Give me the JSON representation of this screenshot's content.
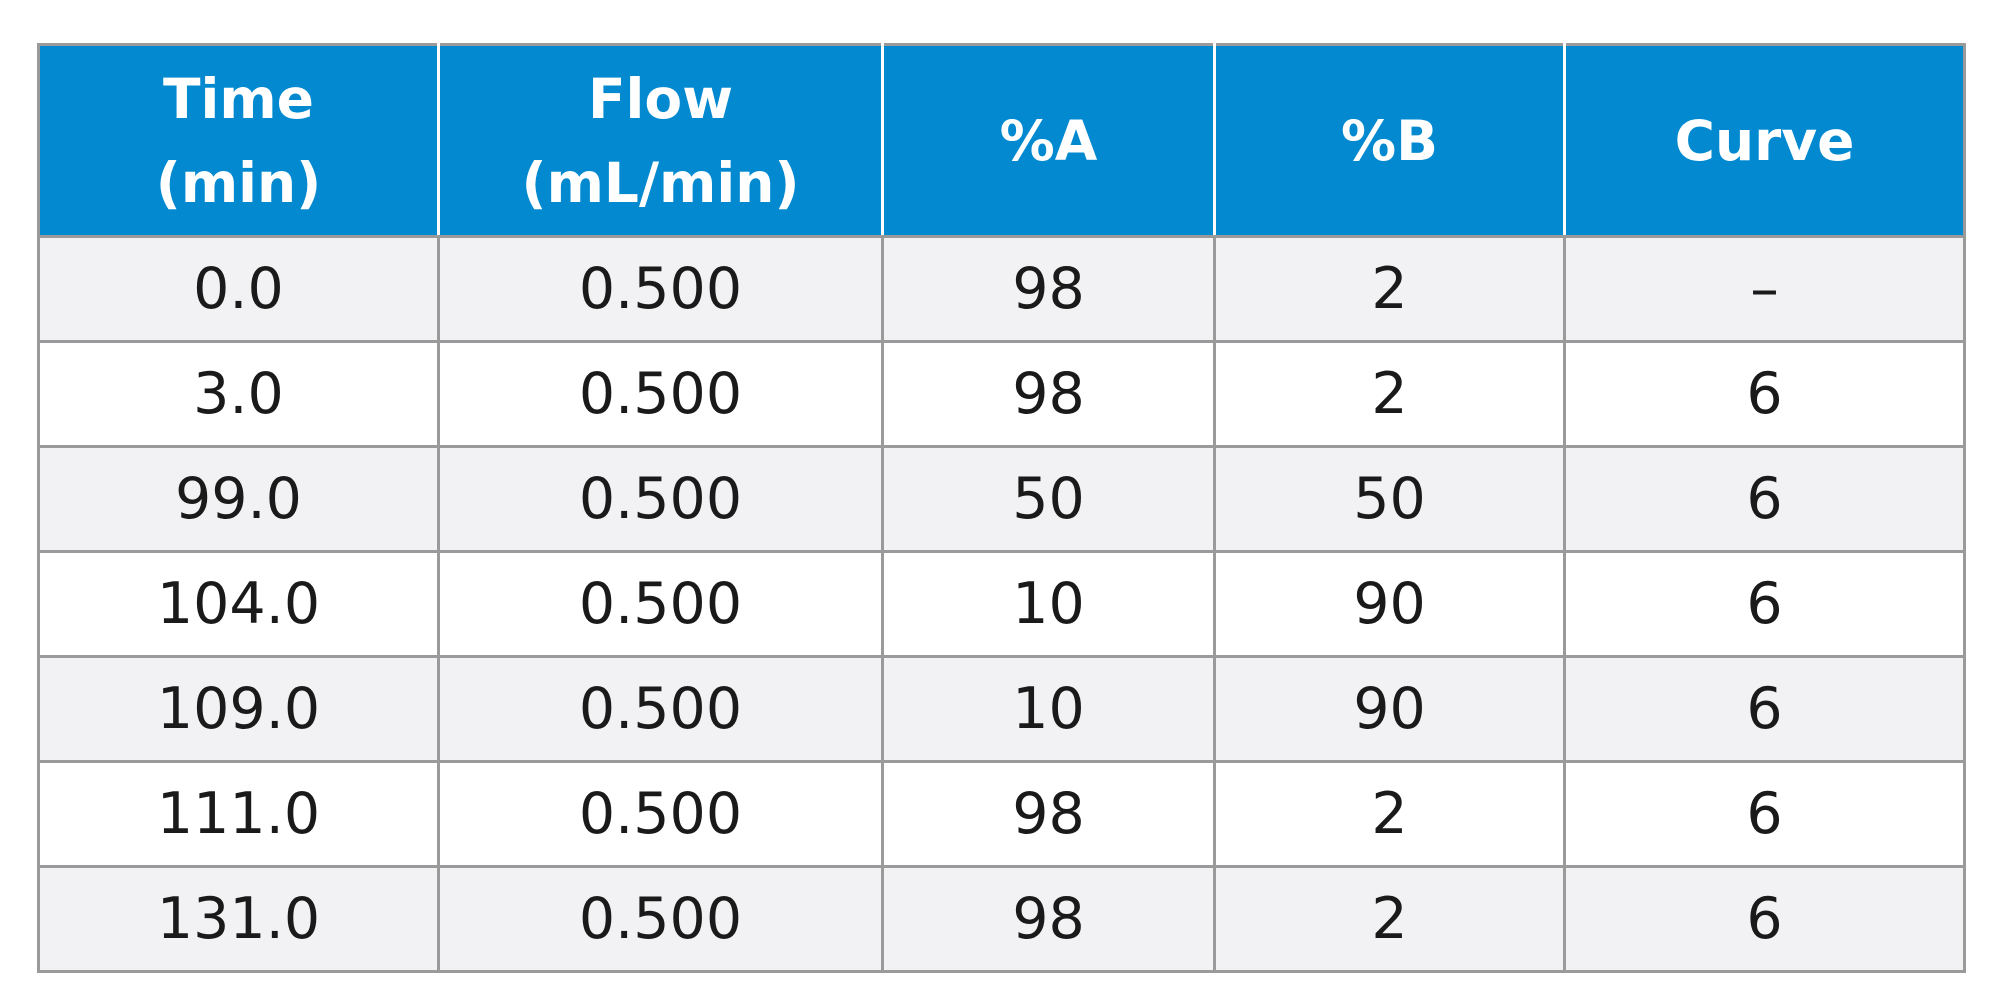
{
  "table": {
    "headers": [
      {
        "line1": "Time",
        "line2": "(min)"
      },
      {
        "line1": "Flow",
        "line2": "(mL/min)"
      },
      {
        "line1": "%A",
        "line2": ""
      },
      {
        "line1": "%B",
        "line2": ""
      },
      {
        "line1": "Curve",
        "line2": ""
      }
    ],
    "rows": [
      [
        "0.0",
        "0.500",
        "98",
        "2",
        "–"
      ],
      [
        "3.0",
        "0.500",
        "98",
        "2",
        "6"
      ],
      [
        "99.0",
        "0.500",
        "50",
        "50",
        "6"
      ],
      [
        "104.0",
        "0.500",
        "10",
        "90",
        "6"
      ],
      [
        "109.0",
        "0.500",
        "10",
        "90",
        "6"
      ],
      [
        "111.0",
        "0.500",
        "98",
        "2",
        "6"
      ],
      [
        "131.0",
        "0.500",
        "98",
        "2",
        "6"
      ]
    ],
    "colors": {
      "header_background": "#0289d0",
      "header_text": "#ffffff",
      "row_shaded": "#f2f2f4",
      "row_plain": "#ffffff",
      "grid_line": "#9a9a9a",
      "body_text": "#1a1a1a"
    }
  }
}
